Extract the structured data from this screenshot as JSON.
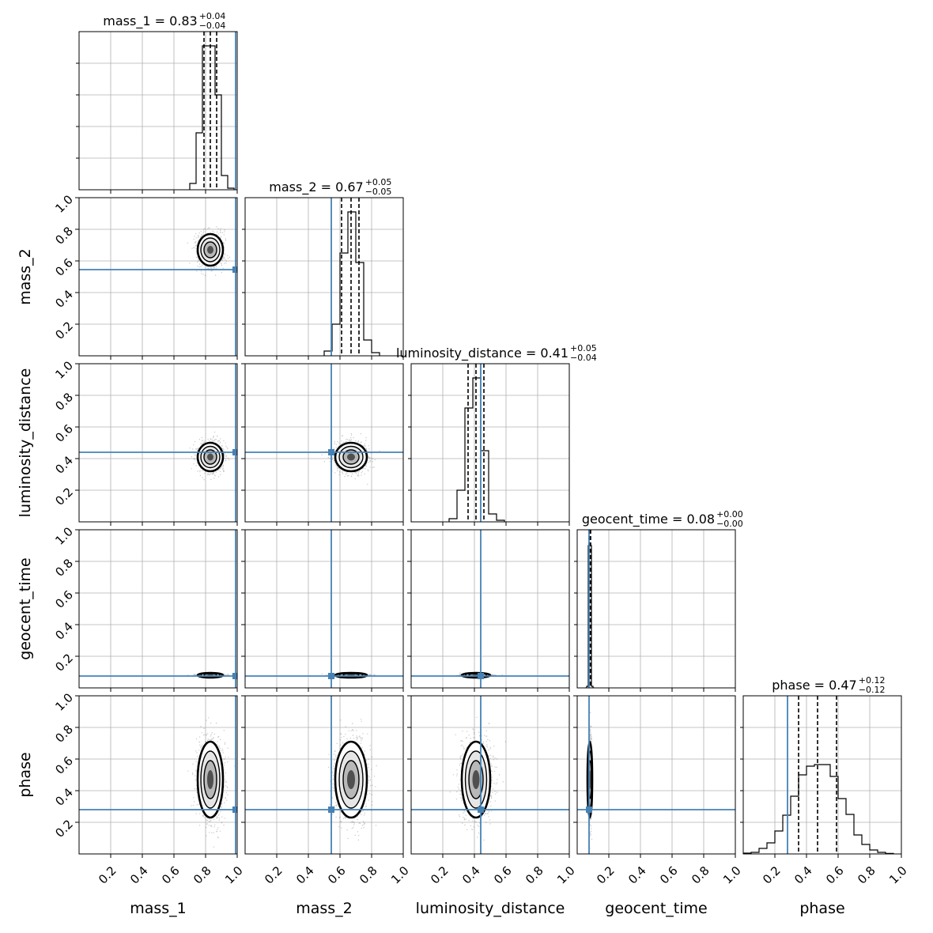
{
  "chart_data": {
    "type": "corner",
    "parameters": [
      "mass_1",
      "mass_2",
      "luminosity_distance",
      "geocent_time",
      "phase"
    ],
    "axis_labels": [
      "mass_1",
      "mass_2",
      "luminosity_distance",
      "geocent_time",
      "phase"
    ],
    "axis_range": [
      0,
      1
    ],
    "tick_values": [
      0.2,
      0.4,
      0.6,
      0.8,
      1.0
    ],
    "tick_labels": [
      "0.2",
      "0.4",
      "0.6",
      "0.8",
      "1.0"
    ],
    "grid": true,
    "truth_color": "#4682b4",
    "truths": {
      "mass_1": 0.99,
      "mass_2": 0.545,
      "luminosity_distance": 0.44,
      "geocent_time": 0.075,
      "phase": 0.28
    },
    "titles": [
      {
        "param": "mass_1",
        "label": "mass_1",
        "median": "0.83",
        "plus": "+0.04",
        "minus": "−0.04",
        "median_value": 0.83,
        "plus_value": 0.04,
        "minus_value": 0.04
      },
      {
        "param": "mass_2",
        "label": "mass_2",
        "median": "0.67",
        "plus": "+0.05",
        "minus": "−0.05",
        "median_value": 0.67,
        "plus_value": 0.05,
        "minus_value": 0.05
      },
      {
        "param": "luminosity_distance",
        "label": "luminosity_distance",
        "median": "0.41",
        "plus": "+0.05",
        "minus": "−0.04",
        "median_value": 0.41,
        "plus_value": 0.05,
        "minus_value": 0.04
      },
      {
        "param": "geocent_time",
        "label": "geocent_time",
        "median": "0.08",
        "plus": "+0.00",
        "minus": "−0.00",
        "median_value": 0.08,
        "plus_value": 0.0,
        "minus_value": 0.0
      },
      {
        "param": "phase",
        "label": "phase",
        "median": "0.47",
        "plus": "+0.12",
        "minus": "−0.12",
        "median_value": 0.47,
        "plus_value": 0.12,
        "minus_value": 0.12
      }
    ],
    "quantiles": {
      "mass_1": [
        0.79,
        0.83,
        0.87
      ],
      "mass_2": [
        0.61,
        0.67,
        0.72
      ],
      "luminosity_distance": [
        0.36,
        0.41,
        0.46
      ],
      "geocent_time": [
        0.075,
        0.08,
        0.085
      ],
      "phase": [
        0.35,
        0.47,
        0.59
      ]
    },
    "histograms": {
      "mass_1": {
        "edges": [
          0.7,
          0.74,
          0.78,
          0.82,
          0.86,
          0.9,
          0.94,
          0.98
        ],
        "counts": [
          0.04,
          0.36,
          0.91,
          0.91,
          0.6,
          0.09,
          0.01
        ]
      },
      "mass_2": {
        "edges": [
          0.5,
          0.55,
          0.6,
          0.65,
          0.7,
          0.75,
          0.8,
          0.85
        ],
        "counts": [
          0.03,
          0.2,
          0.65,
          0.91,
          0.59,
          0.1,
          0.02
        ]
      },
      "luminosity_distance": {
        "edges": [
          0.24,
          0.29,
          0.34,
          0.39,
          0.44,
          0.49,
          0.54,
          0.59
        ],
        "counts": [
          0.02,
          0.2,
          0.72,
          0.91,
          0.45,
          0.05,
          0.01
        ]
      },
      "geocent_time": {
        "edges": [
          0.05,
          0.06,
          0.07,
          0.08,
          0.09,
          0.1,
          0.11
        ],
        "counts": [
          0.0,
          0.01,
          0.9,
          0.9,
          0.01,
          0.0
        ]
      },
      "phase": {
        "edges": [
          0.0,
          0.05,
          0.1,
          0.15,
          0.2,
          0.25,
          0.3,
          0.35,
          0.4,
          0.45,
          0.5,
          0.55,
          0.6,
          0.65,
          0.7,
          0.75,
          0.8,
          0.85,
          0.9,
          0.95
        ],
        "counts": [
          0.005,
          0.01,
          0.035,
          0.07,
          0.145,
          0.245,
          0.365,
          0.5,
          0.555,
          0.565,
          0.565,
          0.49,
          0.35,
          0.25,
          0.12,
          0.06,
          0.025,
          0.01,
          0.003
        ]
      }
    },
    "sigma": {
      "mass_1": 0.04,
      "mass_2": 0.05,
      "luminosity_distance": 0.045,
      "geocent_time": 0.004,
      "phase": 0.12
    }
  }
}
